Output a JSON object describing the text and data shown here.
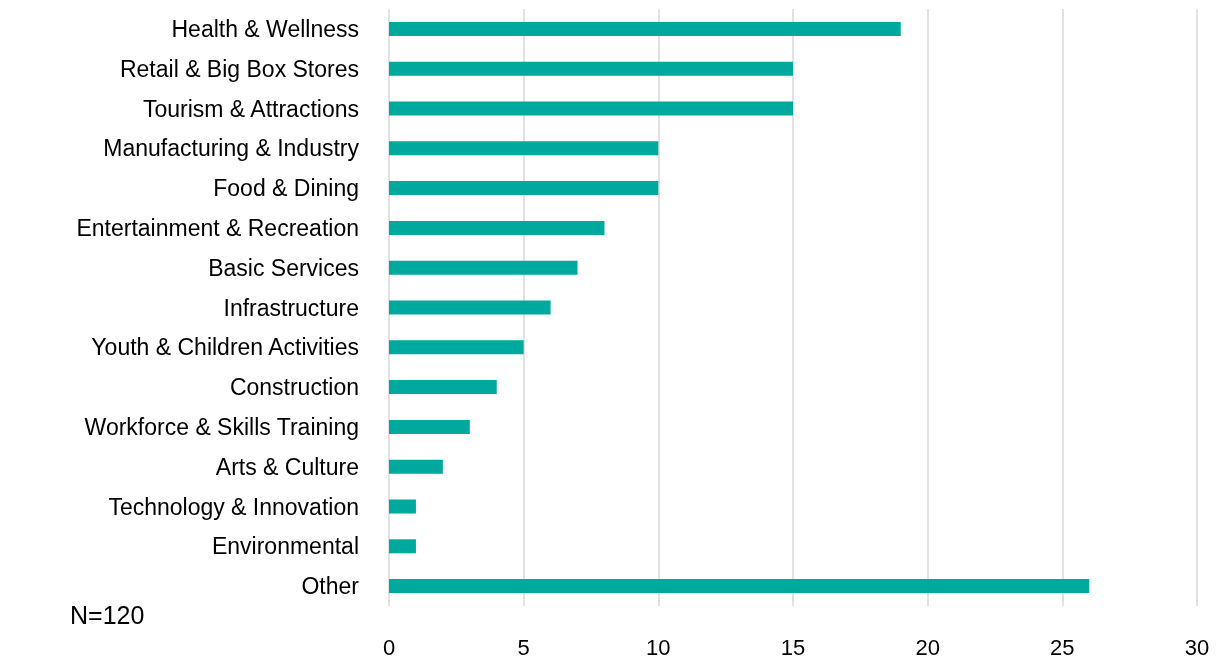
{
  "chart_data": {
    "type": "bar",
    "orientation": "horizontal",
    "categories": [
      "Health & Wellness",
      "Retail & Big Box Stores",
      "Tourism & Attractions",
      "Manufacturing & Industry",
      "Food & Dining",
      "Entertainment & Recreation",
      "Basic Services",
      "Infrastructure",
      "Youth & Children Activities",
      "Construction",
      "Workforce & Skills Training",
      "Arts & Culture",
      "Technology & Innovation",
      "Environmental",
      "Other"
    ],
    "values": [
      19,
      15,
      15,
      10,
      10,
      8,
      7,
      6,
      5,
      4,
      3,
      2,
      1,
      1,
      26
    ],
    "color": "#00a99d",
    "xlim": [
      0,
      30
    ],
    "xticks": [
      0,
      5,
      10,
      15,
      20,
      25,
      30
    ],
    "grid": "x",
    "annotations": [
      "N=120"
    ]
  }
}
